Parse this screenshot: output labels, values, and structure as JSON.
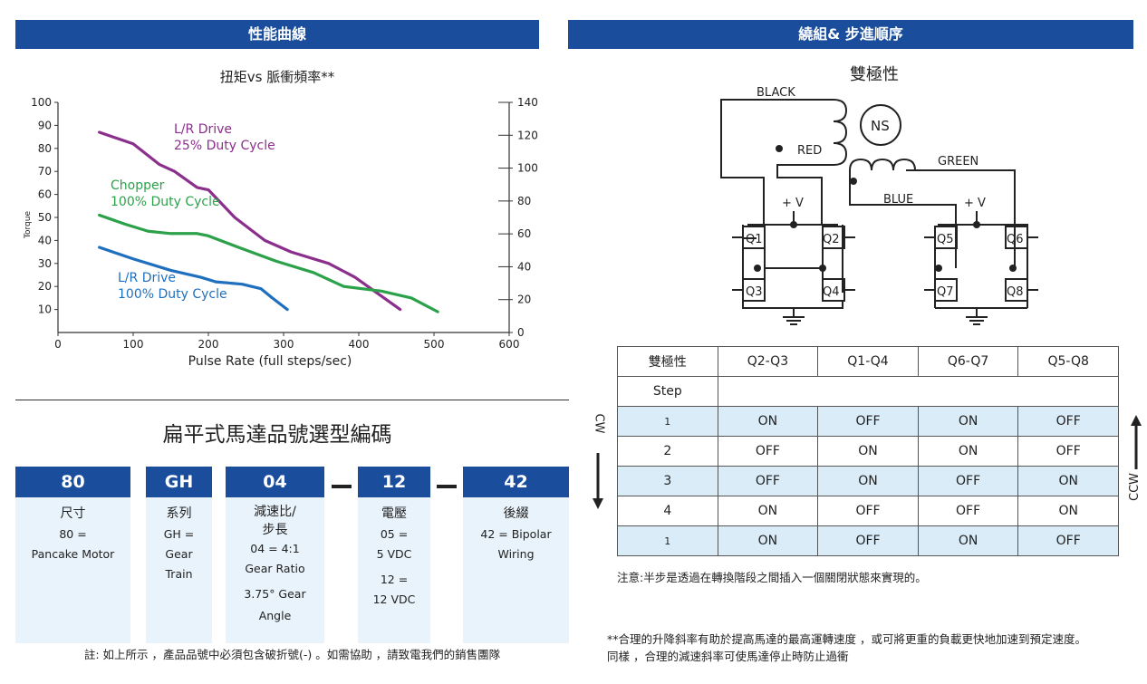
{
  "left_header": "性能曲線",
  "right_header": "繞組& 步進順序",
  "chart_title": "扭矩vs 脈衝頻率**",
  "chart_data": {
    "type": "line",
    "title": "扭矩vs 脈衝頻率**",
    "xlabel": "Pulse Rate (full steps/sec)",
    "ylabel_left": "Torque",
    "x_ticks": [
      0,
      100,
      200,
      300,
      400,
      500,
      600
    ],
    "y_left_ticks": [
      10,
      20,
      30,
      40,
      50,
      60,
      70,
      80,
      90,
      100
    ],
    "y_right_ticks": [
      0,
      20,
      40,
      60,
      80,
      100,
      120,
      140
    ],
    "xlim": [
      0,
      600
    ],
    "ylim_left": [
      0,
      100
    ],
    "ylim_right": [
      0,
      140
    ],
    "grid": false,
    "series": [
      {
        "name": "L/R Drive 25% Duty Cycle",
        "color": "#8b2f8c",
        "x": [
          55,
          100,
          135,
          155,
          185,
          200,
          235,
          275,
          310,
          360,
          395,
          425,
          455
        ],
        "y": [
          87,
          82,
          73,
          70,
          63,
          62,
          50,
          40,
          35,
          30,
          24,
          17,
          10
        ]
      },
      {
        "name": "Chopper 100% Duty Cycle",
        "color": "#2ba14a",
        "x": [
          55,
          90,
          120,
          150,
          185,
          200,
          240,
          290,
          340,
          380,
          430,
          470,
          505
        ],
        "y": [
          51,
          47,
          44,
          43,
          43,
          42,
          37,
          31,
          26,
          20,
          18,
          15,
          9
        ]
      },
      {
        "name": "L/R Drive 100% Duty Cycle",
        "color": "#1f6fbf",
        "x": [
          55,
          100,
          150,
          190,
          210,
          245,
          270,
          285,
          305
        ],
        "y": [
          37,
          32,
          27,
          24,
          22,
          21,
          19,
          15,
          10
        ]
      }
    ],
    "legend_labels": [
      {
        "line1": "L/R Drive",
        "line2": "25% Duty Cycle",
        "color": "#8b2f8c"
      },
      {
        "line1": "Chopper",
        "line2": "100% Duty Cycle",
        "color": "#2ba14a"
      },
      {
        "line1": "L/R Drive",
        "line2": "100% Duty Cycle",
        "color": "#1f6fbf"
      }
    ]
  },
  "code_section": {
    "title": "扁平式馬達品號選型編碼",
    "columns": [
      {
        "code": "80",
        "name": "尺寸",
        "lines": [
          "80 =",
          "Pancake Motor"
        ]
      },
      {
        "code": "GH",
        "name": "系列",
        "lines": [
          "GH =",
          "Gear",
          "Train"
        ]
      },
      {
        "code": "04",
        "name": "減速比/\n步長",
        "name_lines": [
          "減速比/",
          "步長"
        ],
        "lines": [
          "04 = 4:1",
          "Gear Ratio",
          "3.75° Gear",
          "Angle"
        ]
      },
      {
        "code": "12",
        "name": "電壓",
        "lines": [
          "05 =",
          "5 VDC",
          "12 =",
          "12 VDC"
        ]
      },
      {
        "code": "42",
        "name": "後綴",
        "lines": [
          "42 = Bipolar",
          "Wiring"
        ]
      }
    ],
    "note": "註: 如上所示 ，產品品號中必須包含破折號(-) 。如需協助 ，請致電我們的銷售團隊"
  },
  "diagram": {
    "title": "雙極性",
    "labels": {
      "black": "BLACK",
      "red": "RED",
      "green": "GREEN",
      "blue": "BLUE",
      "ns": "NS",
      "vplus": "+ V",
      "q1": "Q1",
      "q2": "Q2",
      "q3": "Q3",
      "q4": "Q4",
      "q5": "Q5",
      "q6": "Q6",
      "q7": "Q7",
      "q8": "Q8"
    }
  },
  "sequence_table": {
    "header": [
      "雙極性",
      "Q2-Q3",
      "Q1-Q4",
      "Q6-Q7",
      "Q5-Q8"
    ],
    "step_label": "Step",
    "rows": [
      {
        "step": "1",
        "values": [
          "ON",
          "OFF",
          "ON",
          "OFF"
        ]
      },
      {
        "step": "2",
        "values": [
          "OFF",
          "ON",
          "ON",
          "OFF"
        ]
      },
      {
        "step": "3",
        "values": [
          "OFF",
          "ON",
          "OFF",
          "ON"
        ]
      },
      {
        "step": "4",
        "values": [
          "ON",
          "OFF",
          "OFF",
          "ON"
        ]
      },
      {
        "step": "1",
        "values": [
          "ON",
          "OFF",
          "ON",
          "OFF"
        ]
      }
    ],
    "cw_label": "CW",
    "ccw_label": "CCW"
  },
  "notes": {
    "note1": "注意:半步是透過在轉換階段之間插入一個關閉狀態來實現的。",
    "note2_line1": "**合理的升降斜率有助於提高馬達的最高運轉速度 ，或可將更重的負載更快地加速到預定速度。",
    "note2_line2": "同樣 ，合理的減速斜率可使馬達停止時防止過衝"
  }
}
